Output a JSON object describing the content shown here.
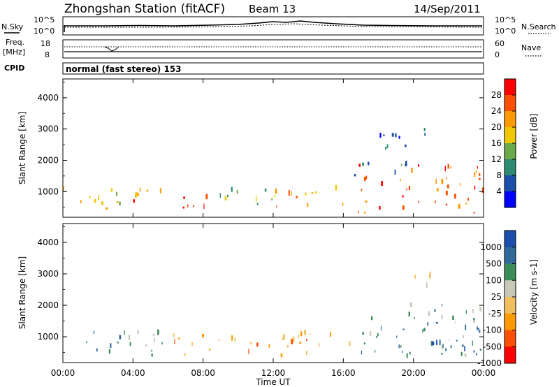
{
  "header": {
    "station": "Zhongshan Station (fitACF)",
    "beam": "Beam 13",
    "date": "14/Sep/2011"
  },
  "noise_panel": {
    "left_label": "N.Sky",
    "right_label": "N.Search",
    "left_ticks": [
      "10^5",
      "10^0"
    ],
    "right_ticks": [
      "10^5",
      "10^0"
    ]
  },
  "freq_panel": {
    "left_label_1": "Freq.",
    "left_label_2": "[MHz]",
    "right_label": "Nave",
    "left_ticks": [
      "18",
      "8"
    ],
    "right_ticks": [
      "60",
      "0"
    ]
  },
  "cpid": {
    "label": "CPID",
    "mode": "normal (fast stereo) 153"
  },
  "chart_data": [
    {
      "type": "heatmap",
      "name": "power",
      "ylabel": "Slant Range [km]",
      "y_ticks": [
        "4000",
        "3000",
        "2000",
        "1000"
      ],
      "y_tick_values": [
        4000,
        3000,
        2000,
        1000
      ],
      "ylim": [
        180,
        4600
      ],
      "xlim_hours": [
        0,
        24
      ],
      "colorbar_label": "Power [dB]",
      "colorbar_ticks": [
        "28",
        "24",
        "20",
        "16",
        "12",
        "8",
        "4"
      ],
      "colorbar_colors": [
        "#ff0000",
        "#ff5000",
        "#ff9a00",
        "#f0c800",
        "#6aaa4a",
        "#2f8a74",
        "#1a4eaa",
        "#0000ff"
      ],
      "regions": [
        {
          "t0": 0.0,
          "t1": 6.0,
          "r0": 300,
          "r1": 1100,
          "level": 3
        },
        {
          "t0": 4.0,
          "t1": 8.5,
          "r0": 400,
          "r1": 800,
          "level": 0
        },
        {
          "t0": 8.5,
          "t1": 12.0,
          "r0": 350,
          "r1": 1000,
          "level": 4
        },
        {
          "t0": 12.0,
          "t1": 16.3,
          "r0": 400,
          "r1": 1100,
          "level": 2
        },
        {
          "t0": 16.8,
          "t1": 24.0,
          "r0": 300,
          "r1": 1800,
          "level": 1
        },
        {
          "t0": 16.5,
          "t1": 20.0,
          "r0": 1400,
          "r1": 1900,
          "level": 5
        },
        {
          "t0": 18.0,
          "t1": 21.0,
          "r0": 2200,
          "r1": 3100,
          "level": 6
        }
      ]
    },
    {
      "type": "heatmap",
      "name": "velocity",
      "ylabel": "Slant Range [km]",
      "y_ticks": [
        "4000",
        "3000",
        "2000",
        "1000"
      ],
      "y_tick_values": [
        4000,
        3000,
        2000,
        1000
      ],
      "ylim": [
        180,
        4600
      ],
      "xlim_hours": [
        0,
        24
      ],
      "colorbar_label": "Velocity [m s-1]",
      "colorbar_ticks": [
        "1000",
        "500",
        "100",
        "25",
        "-25",
        "-100",
        "-500",
        "-1000"
      ],
      "colorbar_colors": [
        "#1a4eaa",
        "#2f6a9a",
        "#3c8c5a",
        "#c8c8b8",
        "#f0c060",
        "#ff9a00",
        "#ff5000",
        "#ff0000"
      ],
      "regions": [
        {
          "t0": 0.0,
          "t1": 6.0,
          "r0": 300,
          "r1": 1100,
          "level": 2
        },
        {
          "t0": 6.0,
          "t1": 16.5,
          "r0": 350,
          "r1": 1100,
          "level": 5
        },
        {
          "t0": 16.8,
          "t1": 24.0,
          "r0": 300,
          "r1": 2000,
          "level": 2
        },
        {
          "t0": 21.0,
          "t1": 24.0,
          "r0": 500,
          "r1": 1500,
          "level": 0
        },
        {
          "t0": 19.0,
          "t1": 21.0,
          "r0": 2500,
          "r1": 3000,
          "level": 3
        }
      ]
    }
  ],
  "x_axis": {
    "ticks": [
      "00:00",
      "04:00",
      "08:00",
      "12:00",
      "16:00",
      "20:00",
      "00:00"
    ],
    "tick_hours": [
      0,
      4,
      8,
      12,
      16,
      20,
      24
    ],
    "label": "Time UT"
  }
}
